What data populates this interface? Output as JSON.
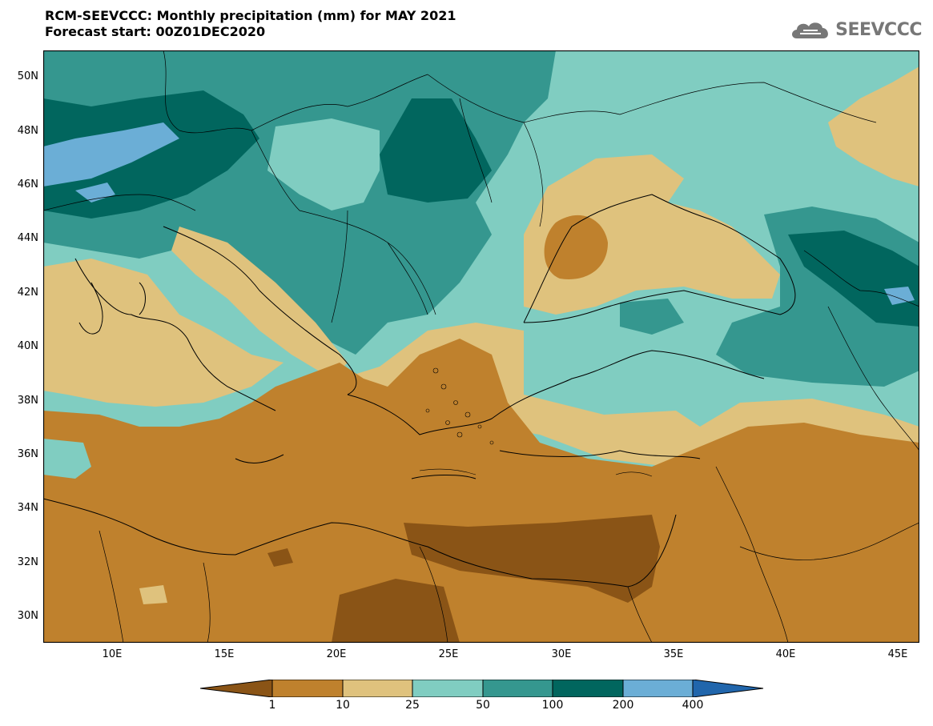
{
  "header": {
    "title": "RCM-SEEVCCC: Monthly precipitation (mm) for MAY 2021",
    "subtitle": "Forecast start: 00Z01DEC2020",
    "logo_text": "SEEVCCC"
  },
  "map": {
    "extent": {
      "lon_min": 7,
      "lon_max": 46,
      "lat_min": 29,
      "lat_max": 51
    },
    "lat_ticks": [
      "30N",
      "32N",
      "34N",
      "36N",
      "38N",
      "40N",
      "42N",
      "44N",
      "46N",
      "48N",
      "50N"
    ],
    "lon_ticks": [
      "10E",
      "15E",
      "20E",
      "25E",
      "30E",
      "35E",
      "40E",
      "45E"
    ]
  },
  "colorbar": {
    "levels": [
      "1",
      "10",
      "25",
      "50",
      "100",
      "200",
      "400"
    ],
    "colors": [
      "#8a5416",
      "#bf812d",
      "#dfc27d",
      "#80cdc1",
      "#35978f",
      "#01665e",
      "#6baed6",
      "#2166ac"
    ]
  }
}
